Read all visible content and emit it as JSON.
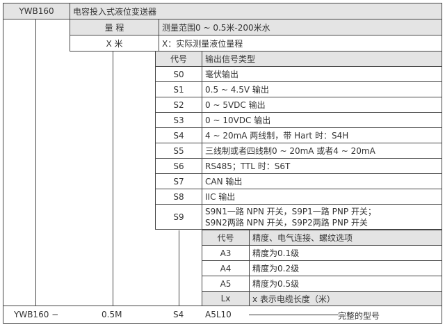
{
  "header": {
    "model": "YWB160",
    "name": "电容投入式液位变送器"
  },
  "range": {
    "label": "量 程",
    "desc": "测量范围0 ~ 0.5米-200米水",
    "code": "X 米",
    "code_desc": "X：实际测量液位量程"
  },
  "output_table": {
    "header": [
      "代号",
      "输出信号类型"
    ],
    "rows": [
      {
        "code": "S0",
        "desc": "毫伏输出"
      },
      {
        "code": "S1",
        "desc": "0.5 ~ 4.5V 输出"
      },
      {
        "code": "S2",
        "desc": "0 ~ 5VDC 输出"
      },
      {
        "code": "S3",
        "desc": "0 ~ 10VDC 输出"
      },
      {
        "code": "S4",
        "desc": "4 ~ 20mA 两线制，带 Hart 时：S4H"
      },
      {
        "code": "S5",
        "desc": "三线制或者四线制0 ~ 20mA 或者4 ~ 20mA"
      },
      {
        "code": "S6",
        "desc": "RS485；TTL 时：S6T"
      },
      {
        "code": "S7",
        "desc": "CAN 输出"
      },
      {
        "code": "S8",
        "desc": "IIC 输出"
      },
      {
        "code": "S9",
        "desc": "S9N1一路 NPN 开关，S9P1一路 PNP 开关；",
        "desc2": "S9N2两路 NPN 开关，S9P2两路 PNP 开关"
      }
    ]
  },
  "option_table": {
    "header": [
      "代号",
      "精度、电气连接、螺纹选项"
    ],
    "rows": [
      {
        "code": "A3",
        "desc": "精度为0.1级"
      },
      {
        "code": "A4",
        "desc": "精度为0.2级"
      },
      {
        "code": "A5",
        "desc": "精度为0.5级"
      },
      {
        "code": "Lx",
        "desc": "x 表示电缆长度（米）"
      }
    ]
  },
  "example": {
    "model": "YWB160 −",
    "range": "0.5M",
    "output": "S4",
    "options": "A5L10",
    "label": "完整的型号"
  }
}
